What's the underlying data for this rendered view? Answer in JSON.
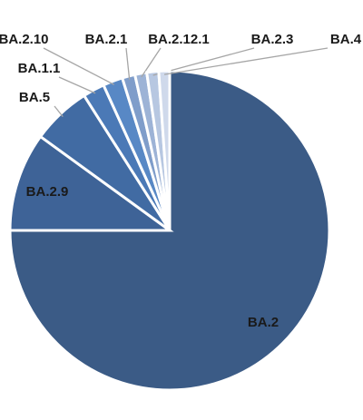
{
  "chart_data": {
    "type": "pie",
    "categories": [
      "BA.2",
      "BA.2.9",
      "BA.5",
      "BA.1.1",
      "BA.2.10",
      "BA.2.1",
      "BA.2.12.1",
      "BA.2.3",
      "BA.4"
    ],
    "values": [
      75,
      10,
      6,
      2.2,
      2,
      1.3,
      1.2,
      1.2,
      1.1
    ],
    "colors": [
      "#3b5b86",
      "#3e6397",
      "#416ba3",
      "#4b79b6",
      "#5888c5",
      "#7f9dca",
      "#9db3d6",
      "#b7c7e1",
      "#cfd9eb"
    ]
  }
}
